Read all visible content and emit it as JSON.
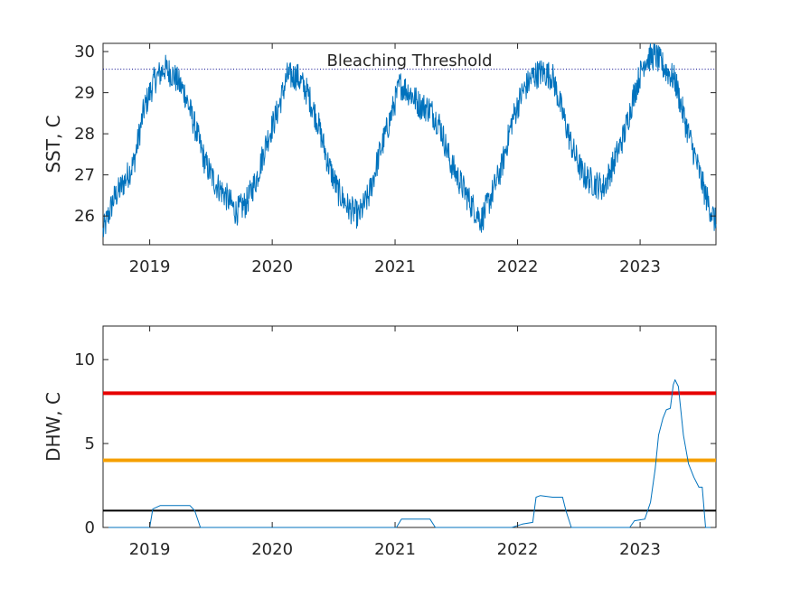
{
  "chart_data": [
    {
      "type": "line",
      "ylabel": "SST, C",
      "xlabel": "",
      "xlim": [
        "2018-08-15",
        "2023-08-15"
      ],
      "ylim": [
        25.3,
        30.2
      ],
      "xticks": [
        "2019",
        "2020",
        "2021",
        "2022",
        "2023"
      ],
      "yticks": [
        26,
        27,
        28,
        29,
        30
      ],
      "grid": false,
      "threshold": {
        "label": "Bleaching Threshold",
        "value": 29.57,
        "style": "dotted",
        "color": "#00008B"
      },
      "series": [
        {
          "color": "#0072BD",
          "x": [
            "2018-08-15",
            "2018-09-15",
            "2018-10-15",
            "2018-11-15",
            "2018-12-15",
            "2019-01-15",
            "2019-02-15",
            "2019-03-15",
            "2019-04-15",
            "2019-05-15",
            "2019-06-15",
            "2019-07-15",
            "2019-08-15",
            "2019-09-15",
            "2019-10-15",
            "2019-11-15",
            "2019-12-15",
            "2020-01-15",
            "2020-02-15",
            "2020-03-15",
            "2020-04-15",
            "2020-05-15",
            "2020-06-15",
            "2020-07-15",
            "2020-08-15",
            "2020-09-15",
            "2020-10-15",
            "2020-11-15",
            "2020-12-15",
            "2021-01-15",
            "2021-02-15",
            "2021-03-15",
            "2021-04-15",
            "2021-05-15",
            "2021-06-15",
            "2021-07-15",
            "2021-08-15",
            "2021-09-15",
            "2021-10-15",
            "2021-11-15",
            "2021-12-15",
            "2022-01-15",
            "2022-02-15",
            "2022-03-15",
            "2022-04-15",
            "2022-05-15",
            "2022-06-15",
            "2022-07-15",
            "2022-08-15",
            "2022-09-15",
            "2022-10-15",
            "2022-11-15",
            "2022-12-15",
            "2023-01-15",
            "2023-02-15",
            "2023-03-15",
            "2023-04-15",
            "2023-05-15",
            "2023-06-15",
            "2023-07-15",
            "2023-08-15"
          ],
          "values": [
            25.6,
            26.4,
            26.8,
            27.3,
            28.6,
            29.3,
            29.6,
            29.4,
            29.0,
            28.2,
            27.3,
            26.8,
            26.5,
            26.1,
            26.3,
            26.9,
            27.8,
            28.5,
            29.4,
            29.4,
            29.0,
            28.3,
            27.3,
            26.6,
            26.2,
            26.0,
            26.5,
            27.5,
            28.3,
            29.2,
            29.0,
            28.7,
            28.6,
            28.2,
            27.3,
            26.8,
            26.3,
            25.9,
            26.5,
            27.2,
            28.3,
            29.0,
            29.4,
            29.5,
            29.4,
            28.5,
            27.6,
            27.0,
            26.8,
            26.7,
            27.3,
            28.0,
            29.0,
            29.8,
            29.9,
            29.6,
            29.3,
            28.3,
            27.4,
            26.5,
            25.8
          ]
        }
      ]
    },
    {
      "type": "line",
      "ylabel": "DHW, C",
      "xlabel": "",
      "xlim": [
        "2018-08-15",
        "2023-08-15"
      ],
      "ylim": [
        0,
        12
      ],
      "xticks": [
        "2019",
        "2020",
        "2021",
        "2022",
        "2023"
      ],
      "yticks": [
        0,
        5,
        10
      ],
      "grid": false,
      "reference_lines": [
        {
          "value": 8,
          "color": "#E60000"
        },
        {
          "value": 4,
          "color": "#F5A000"
        },
        {
          "value": 1,
          "color": "#000000"
        }
      ],
      "series": [
        {
          "color": "#0072BD",
          "x": [
            "2018-08-15",
            "2019-01-01",
            "2019-01-10",
            "2019-02-01",
            "2019-05-01",
            "2019-05-15",
            "2019-06-01",
            "2021-01-05",
            "2021-01-20",
            "2021-02-01",
            "2021-04-15",
            "2021-05-01",
            "2021-12-15",
            "2022-01-15",
            "2022-02-15",
            "2022-02-25",
            "2022-03-10",
            "2022-04-15",
            "2022-05-15",
            "2022-05-25",
            "2022-06-10",
            "2022-12-01",
            "2022-12-15",
            "2023-01-15",
            "2023-02-01",
            "2023-02-15",
            "2023-02-25",
            "2023-03-10",
            "2023-03-20",
            "2023-04-01",
            "2023-04-10",
            "2023-04-15",
            "2023-04-25",
            "2023-05-10",
            "2023-05-25",
            "2023-06-10",
            "2023-06-25",
            "2023-07-05",
            "2023-07-15",
            "2023-08-15"
          ],
          "values": [
            0,
            0,
            1.1,
            1.3,
            1.3,
            1.0,
            0,
            0,
            0.5,
            0.5,
            0.5,
            0,
            0,
            0.2,
            0.3,
            1.8,
            1.9,
            1.8,
            1.8,
            1.0,
            0,
            0,
            0.4,
            0.5,
            1.5,
            3.5,
            5.5,
            6.5,
            7.0,
            7.1,
            8.5,
            8.8,
            8.4,
            5.5,
            3.8,
            3.0,
            2.4,
            2.4,
            0,
            0
          ]
        }
      ]
    }
  ]
}
